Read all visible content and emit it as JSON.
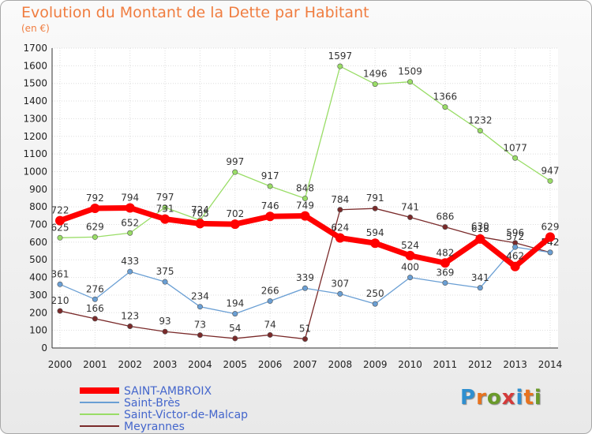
{
  "title": "Evolution du Montant de la Dette par Habitant",
  "subtitle": "(en €)",
  "logo": {
    "text": "Proxiti",
    "colors": [
      "#2f8fd0",
      "#e8731e",
      "#6a9a2a",
      "#d43a3a",
      "#2f8fd0",
      "#e8731e",
      "#6a9a2a"
    ]
  },
  "chart_data": {
    "type": "line",
    "x": [
      "2000",
      "2001",
      "2002",
      "2003",
      "2004",
      "2005",
      "2006",
      "2007",
      "2008",
      "2009",
      "2010",
      "2011",
      "2012",
      "2013",
      "2014"
    ],
    "ylim": [
      0,
      1700
    ],
    "yticks": [
      "0",
      "100",
      "200",
      "300",
      "400",
      "500",
      "600",
      "700",
      "800",
      "900",
      "1000",
      "1100",
      "1200",
      "1300",
      "1400",
      "1500",
      "1600",
      "1700"
    ],
    "grid": true,
    "legend_placement": "bottom-left",
    "series": [
      {
        "name": "SAINT-AMBROIX",
        "color": "#ff0000",
        "values": [
          722,
          792,
          794,
          731,
          705,
          702,
          746,
          749,
          624,
          594,
          524,
          482,
          618,
          462,
          629
        ]
      },
      {
        "name": "Saint-Brès",
        "color": "#6a9fd4",
        "values": [
          361,
          276,
          433,
          375,
          234,
          194,
          266,
          339,
          307,
          250,
          400,
          369,
          341,
          572,
          542
        ]
      },
      {
        "name": "Saint-Victor-de-Malcap",
        "color": "#99dd66",
        "values": [
          625,
          629,
          652,
          797,
          724,
          997,
          917,
          848,
          1597,
          1496,
          1509,
          1366,
          1232,
          1077,
          947
        ]
      },
      {
        "name": "Meyrannes",
        "color": "#7a2a2a",
        "values": [
          210,
          166,
          123,
          93,
          73,
          54,
          74,
          51,
          784,
          791,
          741,
          686,
          630,
          596,
          542
        ]
      }
    ]
  }
}
